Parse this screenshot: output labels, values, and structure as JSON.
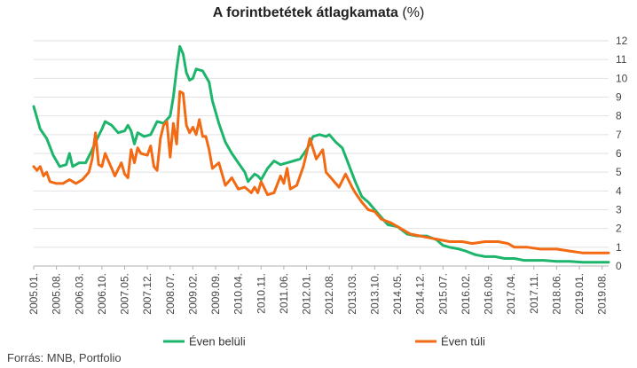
{
  "chart_data": {
    "type": "line",
    "title": "A forintbetétek átlagkamata",
    "title_unit": "(%)",
    "source": "Forrás: MNB, Portfolio",
    "ylim": [
      0,
      12
    ],
    "yticks": [
      0,
      1,
      2,
      3,
      4,
      5,
      6,
      7,
      8,
      9,
      10,
      11,
      12
    ],
    "xlim": [
      "2005.01.",
      "2019.10."
    ],
    "xtick_labels": [
      "2005.01.",
      "2005.08.",
      "2006.03.",
      "2006.10.",
      "2007.05.",
      "2007.12.",
      "2008.07.",
      "2009.02.",
      "2009.09.",
      "2010.04.",
      "2010.11.",
      "2011.06.",
      "2012.01.",
      "2012.08.",
      "2013.03.",
      "2013.10.",
      "2014.05.",
      "2014.12.",
      "2015.07.",
      "2016.02.",
      "2016.09.",
      "2017.04.",
      "2017.11.",
      "2018.06.",
      "2019.01.",
      "2019.08."
    ],
    "grid": "horizontal",
    "legend_position": "bottom",
    "series": [
      {
        "name": "Éven belüli",
        "color": "#1db56b",
        "points": [
          [
            "2005.01.",
            8.5
          ],
          [
            "2005.03.",
            7.3
          ],
          [
            "2005.05.",
            6.8
          ],
          [
            "2005.07.",
            5.9
          ],
          [
            "2005.09.",
            5.3
          ],
          [
            "2005.11.",
            5.4
          ],
          [
            "2005.12.",
            6.0
          ],
          [
            "2006.01.",
            5.3
          ],
          [
            "2006.03.",
            5.5
          ],
          [
            "2006.05.",
            5.5
          ],
          [
            "2006.07.",
            6.2
          ],
          [
            "2006.08.",
            6.6
          ],
          [
            "2006.10.",
            7.3
          ],
          [
            "2006.11.",
            7.7
          ],
          [
            "2007.01.",
            7.5
          ],
          [
            "2007.03.",
            7.1
          ],
          [
            "2007.05.",
            7.2
          ],
          [
            "2007.06.",
            7.5
          ],
          [
            "2007.07.",
            7.2
          ],
          [
            "2007.08.",
            6.5
          ],
          [
            "2007.09.",
            7.1
          ],
          [
            "2007.11.",
            6.9
          ],
          [
            "2008.01.",
            7.0
          ],
          [
            "2008.03.",
            7.7
          ],
          [
            "2008.05.",
            7.6
          ],
          [
            "2008.07.",
            8.0
          ],
          [
            "2008.08.",
            9.0
          ],
          [
            "2008.09.",
            10.5
          ],
          [
            "2008.10.",
            11.7
          ],
          [
            "2008.11.",
            11.3
          ],
          [
            "2008.12.",
            10.3
          ],
          [
            "2009.01.",
            9.9
          ],
          [
            "2009.02.",
            10.0
          ],
          [
            "2009.03.",
            10.5
          ],
          [
            "2009.05.",
            10.4
          ],
          [
            "2009.07.",
            9.8
          ],
          [
            "2009.08.",
            8.8
          ],
          [
            "2009.10.",
            7.6
          ],
          [
            "2009.12.",
            6.6
          ],
          [
            "2010.02.",
            6.0
          ],
          [
            "2010.04.",
            5.5
          ],
          [
            "2010.06.",
            5.0
          ],
          [
            "2010.07.",
            4.5
          ],
          [
            "2010.09.",
            4.9
          ],
          [
            "2010.10.",
            4.8
          ],
          [
            "2010.11.",
            4.6
          ],
          [
            "2011.01.",
            5.2
          ],
          [
            "2011.03.",
            5.6
          ],
          [
            "2011.05.",
            5.4
          ],
          [
            "2011.07.",
            5.5
          ],
          [
            "2011.09.",
            5.6
          ],
          [
            "2011.11.",
            5.7
          ],
          [
            "2012.01.",
            6.2
          ],
          [
            "2012.02.",
            6.5
          ],
          [
            "2012.03.",
            6.9
          ],
          [
            "2012.05.",
            7.0
          ],
          [
            "2012.07.",
            6.9
          ],
          [
            "2012.08.",
            7.0
          ],
          [
            "2012.10.",
            6.6
          ],
          [
            "2012.12.",
            6.3
          ],
          [
            "2013.02.",
            5.4
          ],
          [
            "2013.04.",
            4.5
          ],
          [
            "2013.06.",
            3.7
          ],
          [
            "2013.08.",
            3.4
          ],
          [
            "2013.10.",
            3.0
          ],
          [
            "2013.12.",
            2.6
          ],
          [
            "2014.02.",
            2.2
          ],
          [
            "2014.05.",
            2.1
          ],
          [
            "2014.08.",
            1.7
          ],
          [
            "2014.11.",
            1.6
          ],
          [
            "2015.02.",
            1.6
          ],
          [
            "2015.05.",
            1.4
          ],
          [
            "2015.07.",
            1.1
          ],
          [
            "2015.09.",
            1.0
          ],
          [
            "2015.12.",
            0.9
          ],
          [
            "2016.02.",
            0.8
          ],
          [
            "2016.05.",
            0.6
          ],
          [
            "2016.08.",
            0.5
          ],
          [
            "2016.11.",
            0.5
          ],
          [
            "2017.02.",
            0.4
          ],
          [
            "2017.05.",
            0.4
          ],
          [
            "2017.08.",
            0.3
          ],
          [
            "2017.11.",
            0.3
          ],
          [
            "2018.02.",
            0.3
          ],
          [
            "2018.06.",
            0.25
          ],
          [
            "2018.10.",
            0.25
          ],
          [
            "2019.02.",
            0.2
          ],
          [
            "2019.06.",
            0.2
          ],
          [
            "2019.10.",
            0.2
          ]
        ]
      },
      {
        "name": "Éven túli",
        "color": "#f26a13",
        "points": [
          [
            "2005.01.",
            5.3
          ],
          [
            "2005.02.",
            5.1
          ],
          [
            "2005.03.",
            5.3
          ],
          [
            "2005.04.",
            4.8
          ],
          [
            "2005.05.",
            5.0
          ],
          [
            "2005.06.",
            4.5
          ],
          [
            "2005.08.",
            4.4
          ],
          [
            "2005.10.",
            4.4
          ],
          [
            "2005.12.",
            4.6
          ],
          [
            "2006.02.",
            4.4
          ],
          [
            "2006.04.",
            4.6
          ],
          [
            "2006.06.",
            5.0
          ],
          [
            "2006.07.",
            5.7
          ],
          [
            "2006.08.",
            7.1
          ],
          [
            "2006.09.",
            5.4
          ],
          [
            "2006.10.",
            5.3
          ],
          [
            "2006.11.",
            6.0
          ],
          [
            "2007.01.",
            5.2
          ],
          [
            "2007.02.",
            4.8
          ],
          [
            "2007.04.",
            5.5
          ],
          [
            "2007.05.",
            4.9
          ],
          [
            "2007.06.",
            4.7
          ],
          [
            "2007.07.",
            6.2
          ],
          [
            "2007.08.",
            5.5
          ],
          [
            "2007.09.",
            6.3
          ],
          [
            "2007.10.",
            6.0
          ],
          [
            "2007.12.",
            5.9
          ],
          [
            "2008.01.",
            6.4
          ],
          [
            "2008.02.",
            5.3
          ],
          [
            "2008.03.",
            5.1
          ],
          [
            "2008.04.",
            6.8
          ],
          [
            "2008.05.",
            7.5
          ],
          [
            "2008.06.",
            7.7
          ],
          [
            "2008.07.",
            5.8
          ],
          [
            "2008.08.",
            7.6
          ],
          [
            "2008.09.",
            6.5
          ],
          [
            "2008.10.",
            9.3
          ],
          [
            "2008.11.",
            9.2
          ],
          [
            "2008.12.",
            7.5
          ],
          [
            "2009.01.",
            7.1
          ],
          [
            "2009.02.",
            7.4
          ],
          [
            "2009.03.",
            7.0
          ],
          [
            "2009.04.",
            7.8
          ],
          [
            "2009.05.",
            6.9
          ],
          [
            "2009.06.",
            6.9
          ],
          [
            "2009.07.",
            6.2
          ],
          [
            "2009.08.",
            5.2
          ],
          [
            "2009.10.",
            5.5
          ],
          [
            "2009.12.",
            4.3
          ],
          [
            "2010.02.",
            4.7
          ],
          [
            "2010.04.",
            4.1
          ],
          [
            "2010.06.",
            4.2
          ],
          [
            "2010.08.",
            3.9
          ],
          [
            "2010.09.",
            4.2
          ],
          [
            "2010.10.",
            3.9
          ],
          [
            "2010.11.",
            4.5
          ],
          [
            "2011.01.",
            3.8
          ],
          [
            "2011.03.",
            3.9
          ],
          [
            "2011.05.",
            4.8
          ],
          [
            "2011.06.",
            4.4
          ],
          [
            "2011.07.",
            5.2
          ],
          [
            "2011.08.",
            4.1
          ],
          [
            "2011.10.",
            4.3
          ],
          [
            "2011.12.",
            5.3
          ],
          [
            "2012.01.",
            6.0
          ],
          [
            "2012.02.",
            6.8
          ],
          [
            "2012.04.",
            5.7
          ],
          [
            "2012.06.",
            6.2
          ],
          [
            "2012.07.",
            5.0
          ],
          [
            "2012.09.",
            4.6
          ],
          [
            "2012.11.",
            4.2
          ],
          [
            "2013.01.",
            4.9
          ],
          [
            "2013.03.",
            4.2
          ],
          [
            "2013.04.",
            3.9
          ],
          [
            "2013.06.",
            3.4
          ],
          [
            "2013.08.",
            3.0
          ],
          [
            "2013.10.",
            2.9
          ],
          [
            "2013.12.",
            2.5
          ],
          [
            "2014.03.",
            2.3
          ],
          [
            "2014.06.",
            2.0
          ],
          [
            "2014.09.",
            1.7
          ],
          [
            "2014.12.",
            1.6
          ],
          [
            "2015.03.",
            1.5
          ],
          [
            "2015.06.",
            1.4
          ],
          [
            "2015.09.",
            1.3
          ],
          [
            "2016.01.",
            1.3
          ],
          [
            "2016.04.",
            1.2
          ],
          [
            "2016.08.",
            1.3
          ],
          [
            "2016.12.",
            1.3
          ],
          [
            "2017.03.",
            1.2
          ],
          [
            "2017.05.",
            1.0
          ],
          [
            "2017.09.",
            1.0
          ],
          [
            "2018.01.",
            0.9
          ],
          [
            "2018.06.",
            0.9
          ],
          [
            "2018.10.",
            0.8
          ],
          [
            "2019.02.",
            0.7
          ],
          [
            "2019.06.",
            0.7
          ],
          [
            "2019.10.",
            0.7
          ]
        ]
      }
    ]
  }
}
